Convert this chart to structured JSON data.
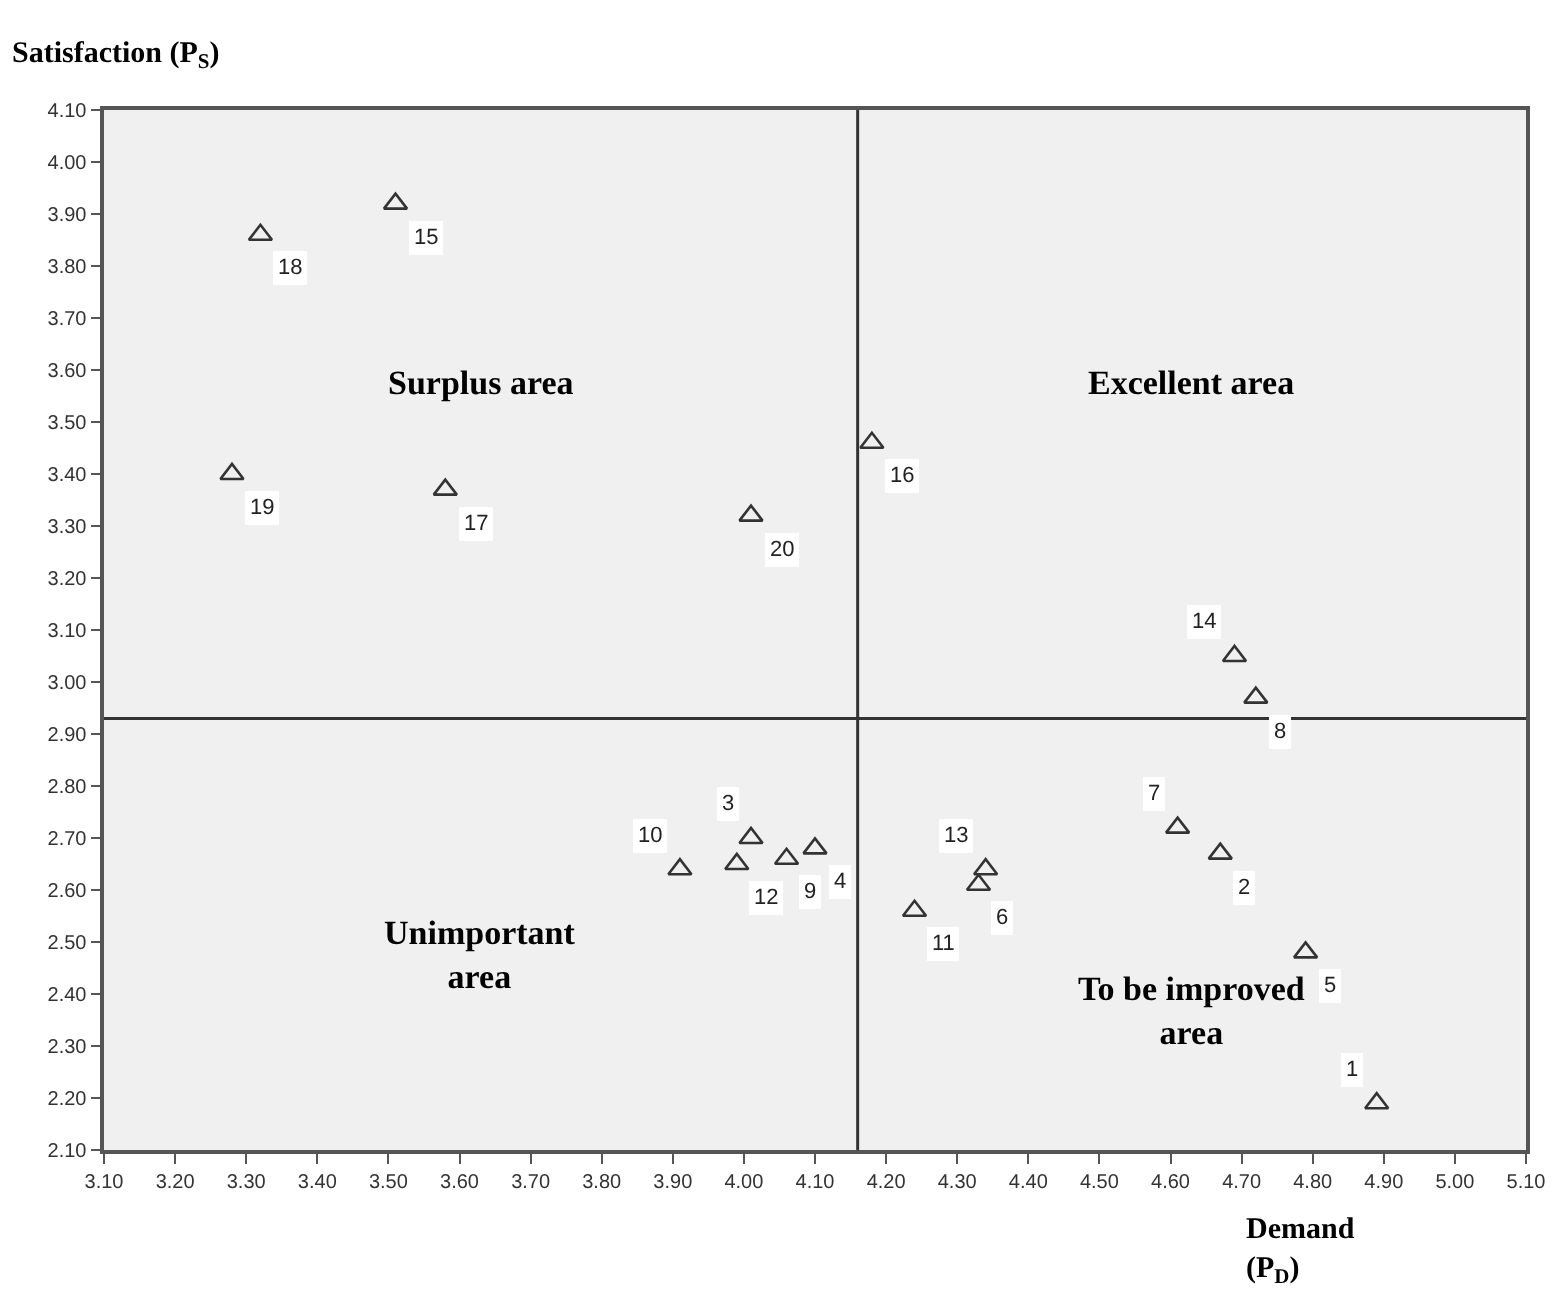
{
  "chart_data": {
    "type": "scatter",
    "ylabel": "Satisfaction (P$_{S}$)",
    "xlabel": "Demand\n(P$_{D}$)",
    "x": [
      4.89,
      4.67,
      4.01,
      4.1,
      4.79,
      4.33,
      4.61,
      4.72,
      4.06,
      3.91,
      4.24,
      3.99,
      4.34,
      4.69,
      3.51,
      4.18,
      3.58,
      3.32,
      3.28,
      4.01
    ],
    "series": [
      {
        "color": "#333333",
        "values": [
          2.19,
          2.67,
          2.7,
          2.68,
          2.48,
          2.61,
          2.72,
          2.97,
          2.66,
          2.64,
          2.56,
          2.65,
          2.64,
          3.05,
          3.92,
          3.46,
          3.37,
          3.86,
          3.4,
          3.32
        ]
      }
    ],
    "marker": "triangle",
    "xlim": [
      3.1,
      5.1
    ],
    "xticks": [
      {
        "value": 3.1,
        "label": "3.10"
      },
      {
        "value": 3.2,
        "label": "3.20"
      },
      {
        "value": 3.3,
        "label": "3.30"
      },
      {
        "value": 3.4,
        "label": "3.40"
      },
      {
        "value": 3.5,
        "label": "3.50"
      },
      {
        "value": 3.6,
        "label": "3.60"
      },
      {
        "value": 3.7,
        "label": "3.70"
      },
      {
        "value": 3.8,
        "label": "3.80"
      },
      {
        "value": 3.9,
        "label": "3.90"
      },
      {
        "value": 4.0,
        "label": "4.00"
      },
      {
        "value": 4.1,
        "label": "4.10"
      },
      {
        "value": 4.2,
        "label": "4.20"
      },
      {
        "value": 4.3,
        "label": "4.30"
      },
      {
        "value": 4.4,
        "label": "4.40"
      },
      {
        "value": 4.5,
        "label": "4.50"
      },
      {
        "value": 4.6,
        "label": "4.60"
      },
      {
        "value": 4.7,
        "label": "4.70"
      },
      {
        "value": 4.8,
        "label": "4.80"
      },
      {
        "value": 4.9,
        "label": "4.90"
      },
      {
        "value": 5.0,
        "label": "5.00"
      },
      {
        "value": 5.1,
        "label": "5.10"
      }
    ],
    "ylim": [
      2.1,
      4.1
    ],
    "yticks": [
      {
        "value": 2.1,
        "label": "2.10"
      },
      {
        "value": 2.2,
        "label": "2.20"
      },
      {
        "value": 2.3,
        "label": "2.30"
      },
      {
        "value": 2.4,
        "label": "2.40"
      },
      {
        "value": 2.5,
        "label": "2.50"
      },
      {
        "value": 2.6,
        "label": "2.60"
      },
      {
        "value": 2.7,
        "label": "2.70"
      },
      {
        "value": 2.8,
        "label": "2.80"
      },
      {
        "value": 2.9,
        "label": "2.90"
      },
      {
        "value": 3.0,
        "label": "3.00"
      },
      {
        "value": 3.1,
        "label": "3.10"
      },
      {
        "value": 3.2,
        "label": "3.20"
      },
      {
        "value": 3.3,
        "label": "3.30"
      },
      {
        "value": 3.4,
        "label": "3.40"
      },
      {
        "value": 3.5,
        "label": "3.50"
      },
      {
        "value": 3.6,
        "label": "3.60"
      },
      {
        "value": 3.7,
        "label": "3.70"
      },
      {
        "value": 3.8,
        "label": "3.80"
      },
      {
        "value": 3.9,
        "label": "3.90"
      },
      {
        "value": 4.0,
        "label": "4.00"
      },
      {
        "value": 4.1,
        "label": "4.10"
      }
    ],
    "ref_lines": [
      {
        "axis": "x",
        "value": 4.16,
        "color": "#333333"
      },
      {
        "axis": "y",
        "value": 2.93,
        "color": "#333333"
      }
    ],
    "annotations": [
      "Surplus area",
      "Excellent area",
      "Unimportant\narea",
      "To be improved\narea",
      {
        "text": "1",
        "x": 4.89,
        "y": 2.19
      },
      {
        "text": "2",
        "x": 4.67,
        "y": 2.67
      },
      {
        "text": "3",
        "x": 4.01,
        "y": 2.7
      },
      {
        "text": "4",
        "x": 4.1,
        "y": 2.68
      },
      {
        "text": "5",
        "x": 4.79,
        "y": 2.48
      },
      {
        "text": "6",
        "x": 4.33,
        "y": 2.61
      },
      {
        "text": "7",
        "x": 4.61,
        "y": 2.72
      },
      {
        "text": "8",
        "x": 4.72,
        "y": 2.97
      },
      {
        "text": "9",
        "x": 4.06,
        "y": 2.66
      },
      {
        "text": "10",
        "x": 3.91,
        "y": 2.64
      },
      {
        "text": "11",
        "x": 4.24,
        "y": 2.56
      },
      {
        "text": "12",
        "x": 3.99,
        "y": 2.65
      },
      {
        "text": "13",
        "x": 4.34,
        "y": 2.64
      },
      {
        "text": "14",
        "x": 4.69,
        "y": 3.05
      },
      {
        "text": "15",
        "x": 3.51,
        "y": 3.92
      },
      {
        "text": "16",
        "x": 4.18,
        "y": 3.46
      },
      {
        "text": "17",
        "x": 3.58,
        "y": 3.37
      },
      {
        "text": "18",
        "x": 3.32,
        "y": 3.86
      },
      {
        "text": "19",
        "x": 3.28,
        "y": 3.4
      },
      {
        "text": "20",
        "x": 4.01,
        "y": 3.32
      }
    ],
    "grid": false
  }
}
